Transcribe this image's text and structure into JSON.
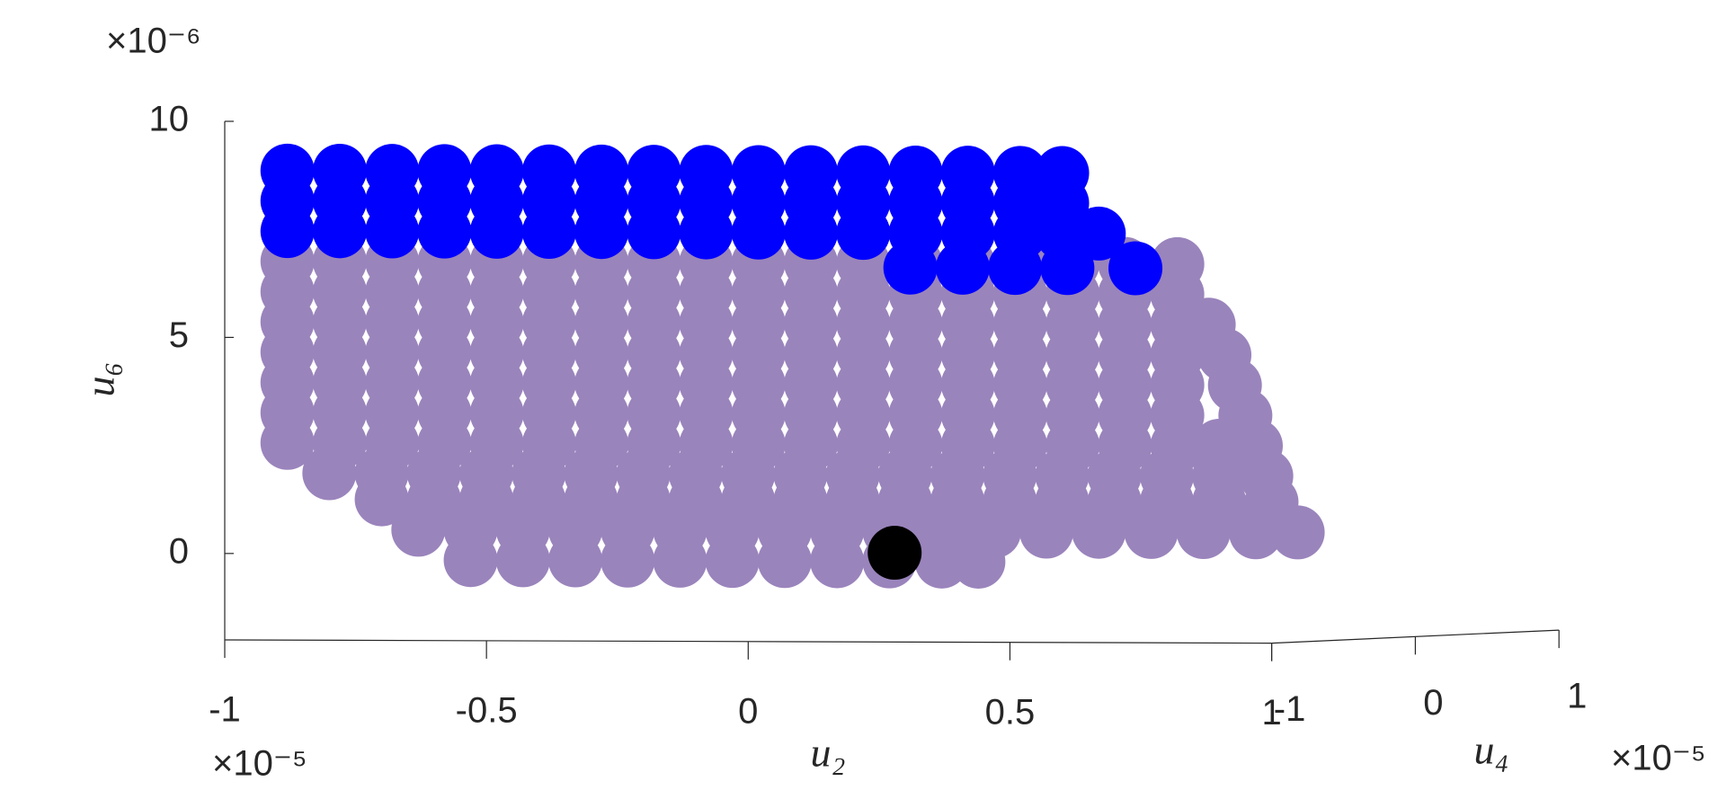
{
  "chart_data": {
    "type": "scatter3",
    "xlabel": "u₂",
    "ylabel": "u₄",
    "zlabel": "u₆",
    "x_exponent": "×10⁻⁵",
    "y_exponent": "×10⁻⁵",
    "z_exponent": "×10⁻⁶",
    "xlim": [
      -1,
      1
    ],
    "ylim": [
      -1,
      1
    ],
    "zlim": [
      -2,
      10
    ],
    "xticks": [
      -1,
      -0.5,
      0,
      0.5,
      1
    ],
    "yticks": [
      -1,
      0,
      1
    ],
    "zticks": [
      0,
      5,
      10
    ],
    "series": [
      {
        "color": "#9a84bc",
        "x": [
          -0.99,
          -0.89,
          -0.79,
          -0.69,
          -0.59,
          -0.49,
          -0.39,
          -0.29,
          -0.19,
          -0.09,
          0.01,
          0.11,
          0.21,
          0.31,
          0.41,
          0.51,
          0.61,
          0.71,
          -0.99,
          -0.89,
          -0.79,
          -0.69,
          -0.59,
          -0.49,
          -0.39,
          -0.29,
          -0.19,
          -0.09,
          0.01,
          0.11,
          0.21,
          0.31,
          0.41,
          0.51,
          0.61,
          0.71,
          -0.99,
          -0.89,
          -0.79,
          -0.69,
          -0.59,
          -0.49,
          -0.39,
          -0.29,
          -0.19,
          -0.09,
          0.01,
          0.11,
          0.21,
          0.31,
          0.41,
          0.51,
          0.61,
          0.71,
          0.77,
          -0.99,
          -0.89,
          -0.79,
          -0.69,
          -0.59,
          -0.49,
          -0.39,
          -0.29,
          -0.19,
          -0.09,
          0.01,
          0.11,
          0.21,
          0.31,
          0.41,
          0.51,
          0.61,
          0.71,
          0.8,
          -0.99,
          -0.89,
          -0.79,
          -0.69,
          -0.59,
          -0.49,
          -0.39,
          -0.29,
          -0.19,
          -0.09,
          0.01,
          0.11,
          0.21,
          0.31,
          0.41,
          0.51,
          0.61,
          0.71,
          0.82,
          -0.99,
          -0.89,
          -0.79,
          -0.69,
          -0.59,
          -0.49,
          -0.39,
          -0.29,
          -0.19,
          -0.09,
          0.01,
          0.11,
          0.21,
          0.31,
          0.41,
          0.51,
          0.61,
          0.71,
          0.84,
          -0.99,
          -0.89,
          -0.79,
          -0.69,
          -0.59,
          -0.49,
          -0.39,
          -0.29,
          -0.19,
          -0.09,
          0.01,
          0.11,
          0.21,
          0.31,
          0.41,
          0.51,
          0.61,
          0.71,
          0.79,
          0.86,
          -0.91,
          -0.81,
          -0.71,
          -0.61,
          -0.51,
          -0.41,
          -0.31,
          -0.21,
          -0.11,
          -0.01,
          0.09,
          0.19,
          0.29,
          0.39,
          0.49,
          0.59,
          0.69,
          0.79,
          0.88,
          -0.81,
          -0.71,
          -0.61,
          -0.51,
          -0.41,
          -0.31,
          -0.21,
          -0.11,
          -0.01,
          0.09,
          0.19,
          0.29,
          0.39,
          0.49,
          0.59,
          0.69,
          0.79,
          0.89,
          -0.74,
          -0.64,
          -0.54,
          -0.44,
          -0.34,
          -0.24,
          -0.14,
          -0.04,
          0.06,
          0.16,
          0.26,
          0.36,
          0.46,
          0.56,
          0.66,
          0.76,
          0.86,
          0.94,
          -0.64,
          -0.54,
          -0.44,
          -0.34,
          -0.24,
          -0.14,
          -0.04,
          0.06,
          0.16,
          0.26,
          0.33
        ],
        "y": [
          -0.6,
          -0.6,
          -0.6,
          -0.6,
          -0.6,
          -0.6,
          -0.6,
          -0.6,
          -0.6,
          -0.6,
          -0.6,
          -0.6,
          -0.6,
          -0.6,
          -0.6,
          -0.6,
          -0.6,
          -0.6,
          -0.6,
          -0.6,
          -0.6,
          -0.6,
          -0.6,
          -0.6,
          -0.6,
          -0.6,
          -0.6,
          -0.6,
          -0.6,
          -0.6,
          -0.6,
          -0.6,
          -0.6,
          -0.6,
          -0.6,
          -0.6,
          -0.6,
          -0.6,
          -0.6,
          -0.6,
          -0.6,
          -0.6,
          -0.6,
          -0.6,
          -0.6,
          -0.6,
          -0.6,
          -0.6,
          -0.6,
          -0.6,
          -0.6,
          -0.6,
          -0.6,
          -0.6,
          -0.6,
          -0.6,
          -0.6,
          -0.6,
          -0.6,
          -0.6,
          -0.6,
          -0.6,
          -0.6,
          -0.6,
          -0.6,
          -0.6,
          -0.6,
          -0.6,
          -0.6,
          -0.6,
          -0.6,
          -0.6,
          -0.6,
          -0.6,
          -0.6,
          -0.6,
          -0.6,
          -0.6,
          -0.6,
          -0.6,
          -0.6,
          -0.6,
          -0.6,
          -0.6,
          -0.6,
          -0.6,
          -0.6,
          -0.6,
          -0.6,
          -0.6,
          -0.6,
          -0.6,
          -0.6,
          -0.6,
          -0.6,
          -0.6,
          -0.6,
          -0.6,
          -0.6,
          -0.6,
          -0.6,
          -0.6,
          -0.6,
          -0.6,
          -0.6,
          -0.6,
          -0.6,
          -0.6,
          -0.6,
          -0.6,
          -0.6,
          -0.6,
          -0.6,
          -0.6,
          -0.6,
          -0.6,
          -0.6,
          -0.6,
          -0.6,
          -0.6,
          -0.6,
          -0.6,
          -0.6,
          -0.6,
          -0.6,
          -0.6,
          -0.6,
          -0.6,
          -0.6,
          -0.6,
          -0.6,
          -0.6,
          -0.6,
          -0.6,
          -0.6,
          -0.6,
          -0.6,
          -0.6,
          -0.6,
          -0.6,
          -0.6,
          -0.6,
          -0.6,
          -0.6,
          -0.6,
          -0.6,
          -0.6,
          -0.6,
          -0.6,
          -0.6,
          -0.6,
          -0.6,
          -0.6,
          -0.6,
          -0.6,
          -0.6,
          -0.6,
          -0.6,
          -0.6,
          -0.6,
          -0.6,
          -0.6,
          -0.6,
          -0.6,
          -0.6,
          -0.6,
          -0.6,
          -0.6,
          -0.6,
          -0.6,
          -0.6,
          -0.6,
          -0.6,
          -0.6,
          -0.6,
          -0.6,
          -0.6,
          -0.6,
          -0.6,
          -0.6,
          -0.6,
          -0.6,
          -0.6,
          -0.6,
          -0.6,
          -0.6,
          -0.6,
          -0.6,
          -0.6,
          -0.6,
          -0.6,
          -0.6,
          -0.6,
          -0.6,
          -0.6,
          -0.6,
          -0.6,
          -0.6
        ],
        "z": [
          6.7,
          6.7,
          6.7,
          6.7,
          6.7,
          6.7,
          6.7,
          6.7,
          6.7,
          6.7,
          6.7,
          6.7,
          6.7,
          6.7,
          6.7,
          6.7,
          6.7,
          6.7,
          6,
          6,
          6,
          6,
          6,
          6,
          6,
          6,
          6,
          6,
          6,
          6,
          6,
          6,
          6,
          6,
          6,
          6,
          5.3,
          5.3,
          5.3,
          5.3,
          5.3,
          5.3,
          5.3,
          5.3,
          5.3,
          5.3,
          5.3,
          5.3,
          5.3,
          5.3,
          5.3,
          5.3,
          5.3,
          5.3,
          5.3,
          4.6,
          4.6,
          4.6,
          4.6,
          4.6,
          4.6,
          4.6,
          4.6,
          4.6,
          4.6,
          4.6,
          4.6,
          4.6,
          4.6,
          4.6,
          4.6,
          4.6,
          4.6,
          4.6,
          3.9,
          3.9,
          3.9,
          3.9,
          3.9,
          3.9,
          3.9,
          3.9,
          3.9,
          3.9,
          3.9,
          3.9,
          3.9,
          3.9,
          3.9,
          3.9,
          3.9,
          3.9,
          3.9,
          3.2,
          3.2,
          3.2,
          3.2,
          3.2,
          3.2,
          3.2,
          3.2,
          3.2,
          3.2,
          3.2,
          3.2,
          3.2,
          3.2,
          3.2,
          3.2,
          3.2,
          3.2,
          3.2,
          2.5,
          2.5,
          2.5,
          2.5,
          2.5,
          2.5,
          2.5,
          2.5,
          2.5,
          2.5,
          2.5,
          2.5,
          2.5,
          2.5,
          2.5,
          2.5,
          2.5,
          2.5,
          2.5,
          2.5,
          1.8,
          1.8,
          1.8,
          1.8,
          1.8,
          1.8,
          1.8,
          1.8,
          1.8,
          1.8,
          1.8,
          1.8,
          1.8,
          1.8,
          1.8,
          1.8,
          1.8,
          1.8,
          1.8,
          1.2,
          1.2,
          1.2,
          1.2,
          1.2,
          1.2,
          1.2,
          1.2,
          1.2,
          1.2,
          1.2,
          1.2,
          1.2,
          1.2,
          1.2,
          1.2,
          1.2,
          1.2,
          0.5,
          0.5,
          0.5,
          0.5,
          0.5,
          0.5,
          0.5,
          0.5,
          0.5,
          0.5,
          0.5,
          0.5,
          0.5,
          0.5,
          0.5,
          0.5,
          0.5,
          0.5,
          -0.2,
          -0.2,
          -0.2,
          -0.2,
          -0.2,
          -0.2,
          -0.2,
          -0.2,
          -0.2,
          -0.2,
          -0.2
        ]
      },
      {
        "color": "#0000ff",
        "x": [
          -0.99,
          -0.89,
          -0.79,
          -0.69,
          -0.59,
          -0.49,
          -0.39,
          -0.29,
          -0.19,
          -0.09,
          0.01,
          0.11,
          0.21,
          0.31,
          0.41,
          0.49,
          -0.99,
          -0.89,
          -0.79,
          -0.69,
          -0.59,
          -0.49,
          -0.39,
          -0.29,
          -0.19,
          -0.09,
          0.01,
          0.11,
          0.21,
          0.31,
          0.41,
          0.49,
          -0.99,
          -0.89,
          -0.79,
          -0.69,
          -0.59,
          -0.49,
          -0.39,
          -0.29,
          -0.19,
          -0.09,
          0.01,
          0.11,
          0.21,
          0.31,
          0.41,
          0.49,
          0.56,
          0.2,
          0.3,
          0.4,
          0.5,
          0.63
        ],
        "y": [
          -0.6,
          -0.6,
          -0.6,
          -0.6,
          -0.6,
          -0.6,
          -0.6,
          -0.6,
          -0.6,
          -0.6,
          -0.6,
          -0.6,
          -0.6,
          -0.6,
          -0.6,
          -0.6,
          -0.6,
          -0.6,
          -0.6,
          -0.6,
          -0.6,
          -0.6,
          -0.6,
          -0.6,
          -0.6,
          -0.6,
          -0.6,
          -0.6,
          -0.6,
          -0.6,
          -0.6,
          -0.6,
          -0.6,
          -0.6,
          -0.6,
          -0.6,
          -0.6,
          -0.6,
          -0.6,
          -0.6,
          -0.6,
          -0.6,
          -0.6,
          -0.6,
          -0.6,
          -0.6,
          -0.6,
          -0.6,
          -0.6,
          -0.6,
          -0.6,
          -0.6,
          -0.6,
          -0.6
        ],
        "z": [
          8.8,
          8.8,
          8.8,
          8.8,
          8.8,
          8.8,
          8.8,
          8.8,
          8.8,
          8.8,
          8.8,
          8.8,
          8.8,
          8.8,
          8.8,
          8.8,
          8.1,
          8.1,
          8.1,
          8.1,
          8.1,
          8.1,
          8.1,
          8.1,
          8.1,
          8.1,
          8.1,
          8.1,
          8.1,
          8.1,
          8.1,
          8.1,
          7.4,
          7.4,
          7.4,
          7.4,
          7.4,
          7.4,
          7.4,
          7.4,
          7.4,
          7.4,
          7.4,
          7.4,
          7.4,
          7.4,
          7.4,
          7.4,
          7.4,
          6.6,
          6.6,
          6.6,
          6.6,
          6.6
        ]
      },
      {
        "color": "#000000",
        "x": [
          0.17
        ],
        "y": [
          -0.6
        ],
        "z": [
          0
        ]
      }
    ]
  }
}
